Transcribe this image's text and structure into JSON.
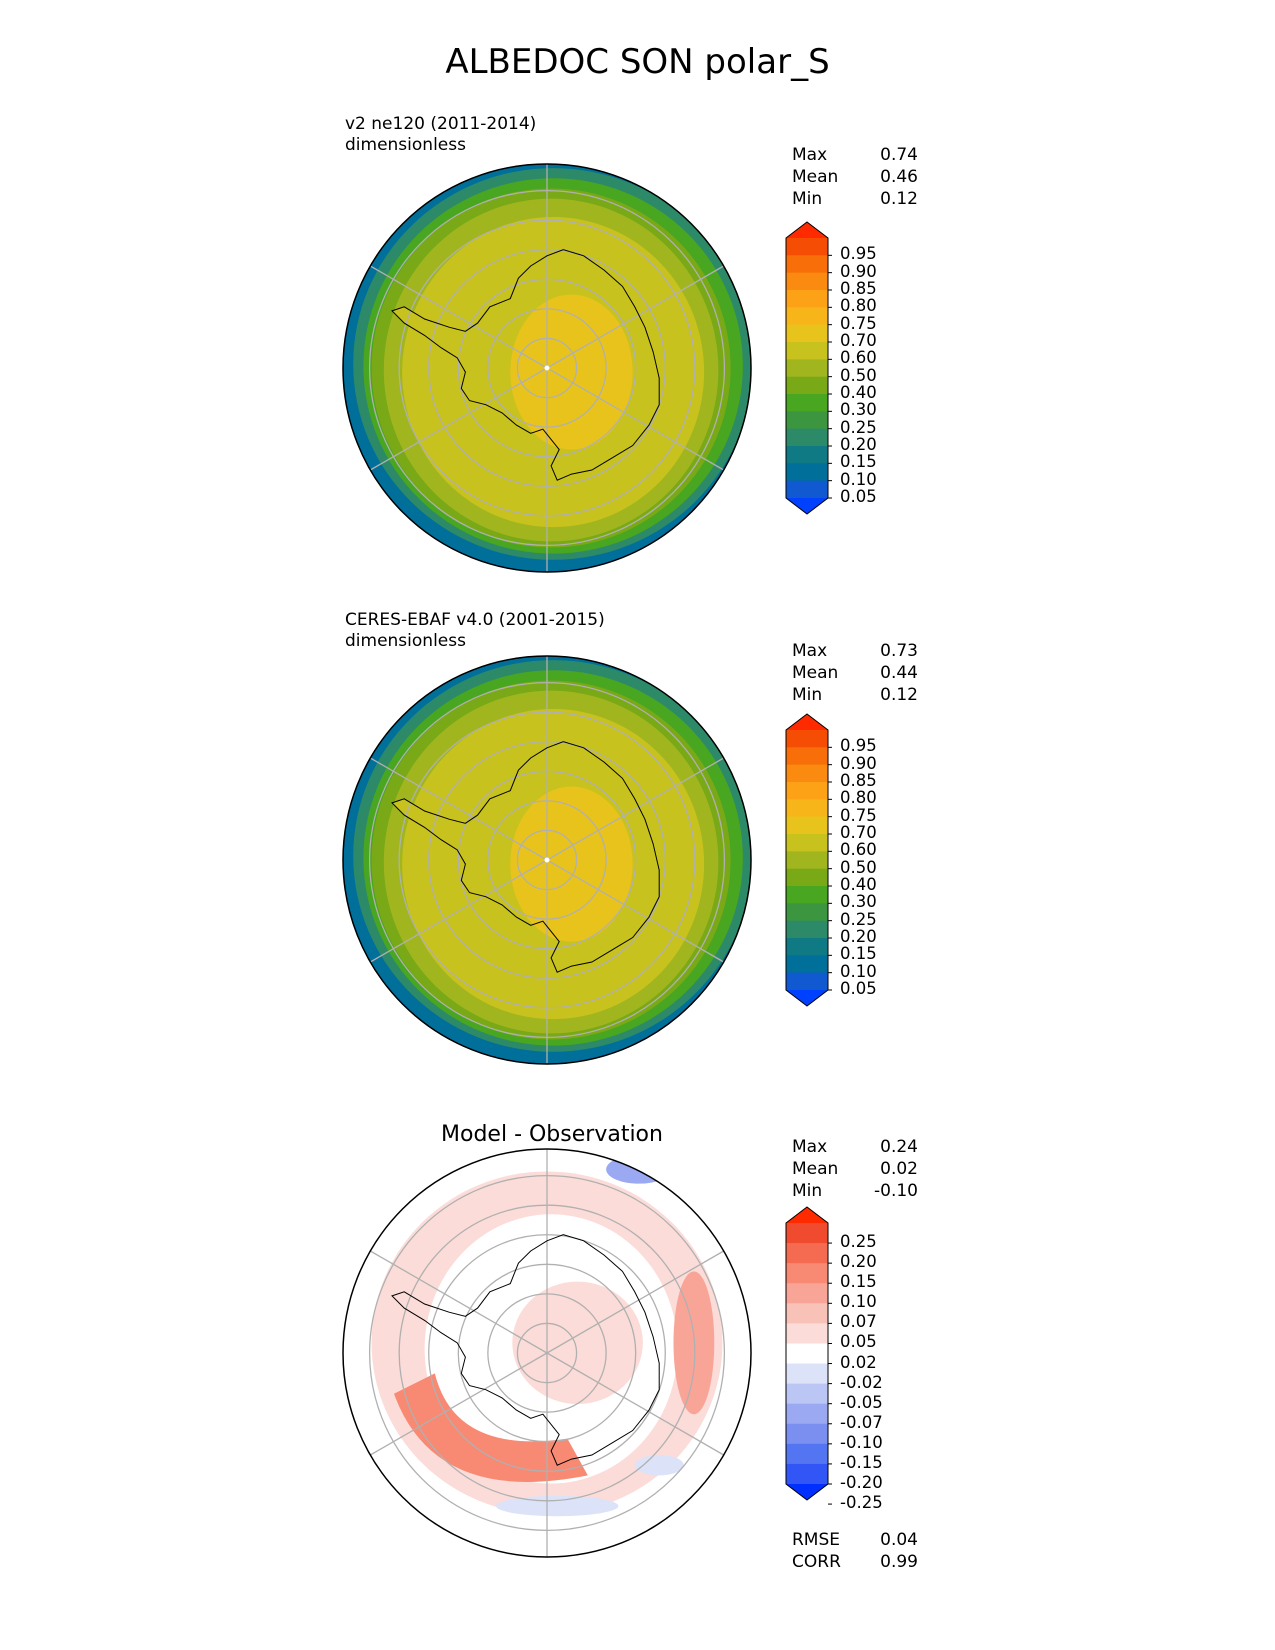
{
  "figure": {
    "title": "ALBEDOC SON polar_S"
  },
  "colors": {
    "seq_cmap": [
      "#0041ff",
      "#1059d0",
      "#006f9a",
      "#107a84",
      "#2d8a68",
      "#3c963f",
      "#49a620",
      "#7aa917",
      "#a1b61e",
      "#c8c21e",
      "#e8c31c",
      "#f8b51a",
      "#fda117",
      "#fb8a10",
      "#f86f09",
      "#f54d04",
      "#ff2a00"
    ],
    "diff_cmap": [
      "#0030ff",
      "#3156f5",
      "#5475f2",
      "#7a8ff0",
      "#9aa9f2",
      "#bcc6f5",
      "#dce2f8",
      "#ffffff",
      "#fbdcd8",
      "#f8c2b9",
      "#f8a597",
      "#f88973",
      "#f56b52",
      "#f14b2f",
      "#ff2a00"
    ]
  },
  "chart_data": [
    {
      "type": "heatmap",
      "projection": "south-polar-stereographic",
      "title_lines": [
        "v2 ne120 (2011-2014)",
        "dimensionless"
      ],
      "stats": [
        {
          "name": "Max",
          "value": "0.74"
        },
        {
          "name": "Mean",
          "value": "0.46"
        },
        {
          "name": "Min",
          "value": "0.12"
        }
      ],
      "colorbar": {
        "levels": [
          0.05,
          0.1,
          0.15,
          0.2,
          0.25,
          0.3,
          0.4,
          0.5,
          0.6,
          0.7,
          0.75,
          0.8,
          0.85,
          0.9,
          0.95
        ],
        "tick_labels": [
          "0.95",
          "0.90",
          "0.85",
          "0.80",
          "0.75",
          "0.70",
          "0.60",
          "0.50",
          "0.40",
          "0.30",
          "0.25",
          "0.20",
          "0.15",
          "0.10",
          "0.05"
        ],
        "extend": "both"
      },
      "field": {
        "open_ocean": 0.12,
        "sea_ice_edge": 0.3,
        "sea_ice": 0.55,
        "continent_coast": 0.68,
        "continent_interior": 0.74
      }
    },
    {
      "type": "heatmap",
      "projection": "south-polar-stereographic",
      "title_lines": [
        "CERES-EBAF v4.0 (2001-2015)",
        "dimensionless"
      ],
      "stats": [
        {
          "name": "Max",
          "value": "0.73"
        },
        {
          "name": "Mean",
          "value": "0.44"
        },
        {
          "name": "Min",
          "value": "0.12"
        }
      ],
      "colorbar": {
        "levels": [
          0.05,
          0.1,
          0.15,
          0.2,
          0.25,
          0.3,
          0.4,
          0.5,
          0.6,
          0.7,
          0.75,
          0.8,
          0.85,
          0.9,
          0.95
        ],
        "tick_labels": [
          "0.95",
          "0.90",
          "0.85",
          "0.80",
          "0.75",
          "0.70",
          "0.60",
          "0.50",
          "0.40",
          "0.30",
          "0.25",
          "0.20",
          "0.15",
          "0.10",
          "0.05"
        ],
        "extend": "both"
      },
      "field": {
        "open_ocean": 0.12,
        "sea_ice_edge": 0.35,
        "sea_ice": 0.52,
        "continent_coast": 0.65,
        "continent_interior": 0.7
      }
    },
    {
      "type": "heatmap",
      "projection": "south-polar-stereographic",
      "title": "Model - Observation",
      "stats": [
        {
          "name": "Max",
          "value": "0.24"
        },
        {
          "name": "Mean",
          "value": "0.02"
        },
        {
          "name": "Min",
          "value": "-0.10"
        }
      ],
      "colorbar": {
        "levels": [
          -0.25,
          -0.2,
          -0.15,
          -0.1,
          -0.07,
          -0.05,
          -0.02,
          0.02,
          0.05,
          0.07,
          0.1,
          0.15,
          0.2,
          0.25
        ],
        "tick_labels": [
          "0.25",
          "0.20",
          "0.15",
          "0.10",
          "0.07",
          "0.05",
          "0.02",
          "-0.02",
          "-0.05",
          "-0.07",
          "-0.10",
          "-0.15",
          "-0.20",
          "-0.25"
        ],
        "extend": "both"
      },
      "metrics": [
        {
          "name": "RMSE",
          "value": "0.04"
        },
        {
          "name": "CORR",
          "value": "0.99"
        }
      ]
    }
  ]
}
